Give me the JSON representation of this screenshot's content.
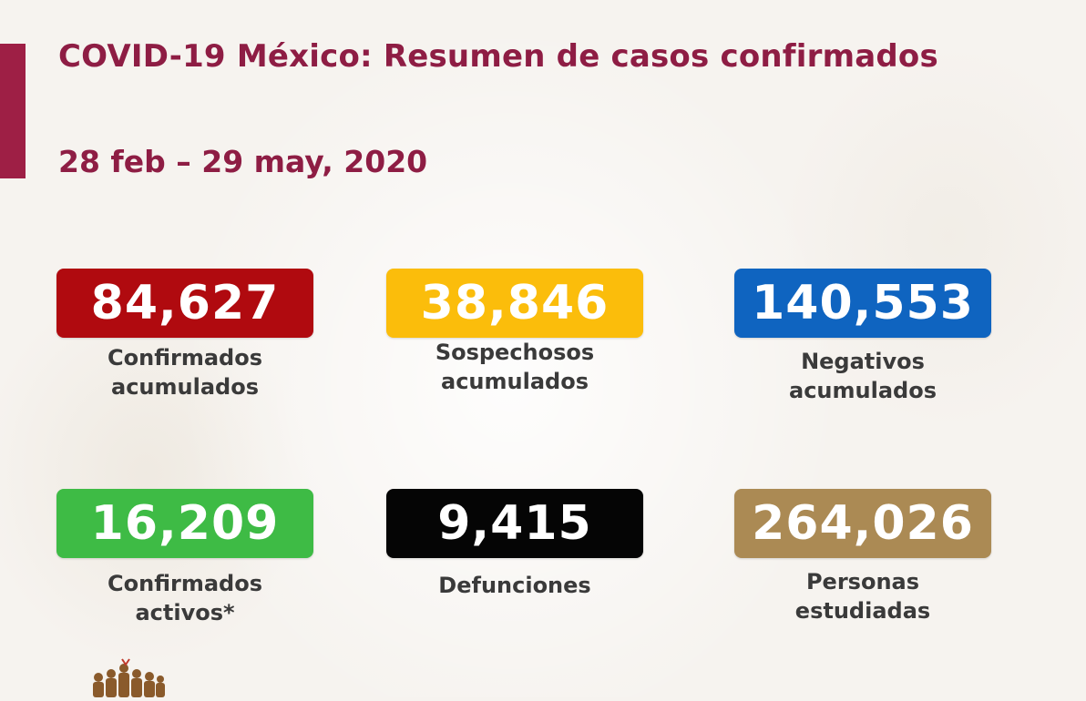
{
  "header": {
    "title": "COVID-19 México: Resumen de casos confirmados",
    "date_range": "28 feb – 29 may, 2020"
  },
  "colors": {
    "accent": "#9e1f45",
    "confirmados": "#b00a0f",
    "sospechosos": "#fbbd0b",
    "negativos": "#0f64c0",
    "activos": "#3ebb45",
    "defunciones": "#050505",
    "estudiadas": "#ab8a54"
  },
  "stats": [
    {
      "key": "confirmados",
      "value": "84,627",
      "label": "Confirmados\nacumulados"
    },
    {
      "key": "sospechosos",
      "value": "38,846",
      "label": "Sospechosos\nacumulados"
    },
    {
      "key": "negativos",
      "value": "140,553",
      "label": "Negativos\nacumulados"
    },
    {
      "key": "activos",
      "value": "16,209",
      "label": "Confirmados\nactivos*"
    },
    {
      "key": "defunciones",
      "value": "9,415",
      "label": "Defunciones"
    },
    {
      "key": "estudiadas",
      "value": "264,026",
      "label": "Personas\nestudiadas"
    }
  ],
  "footer": {
    "logo_icon": "historic-figures-icon"
  }
}
